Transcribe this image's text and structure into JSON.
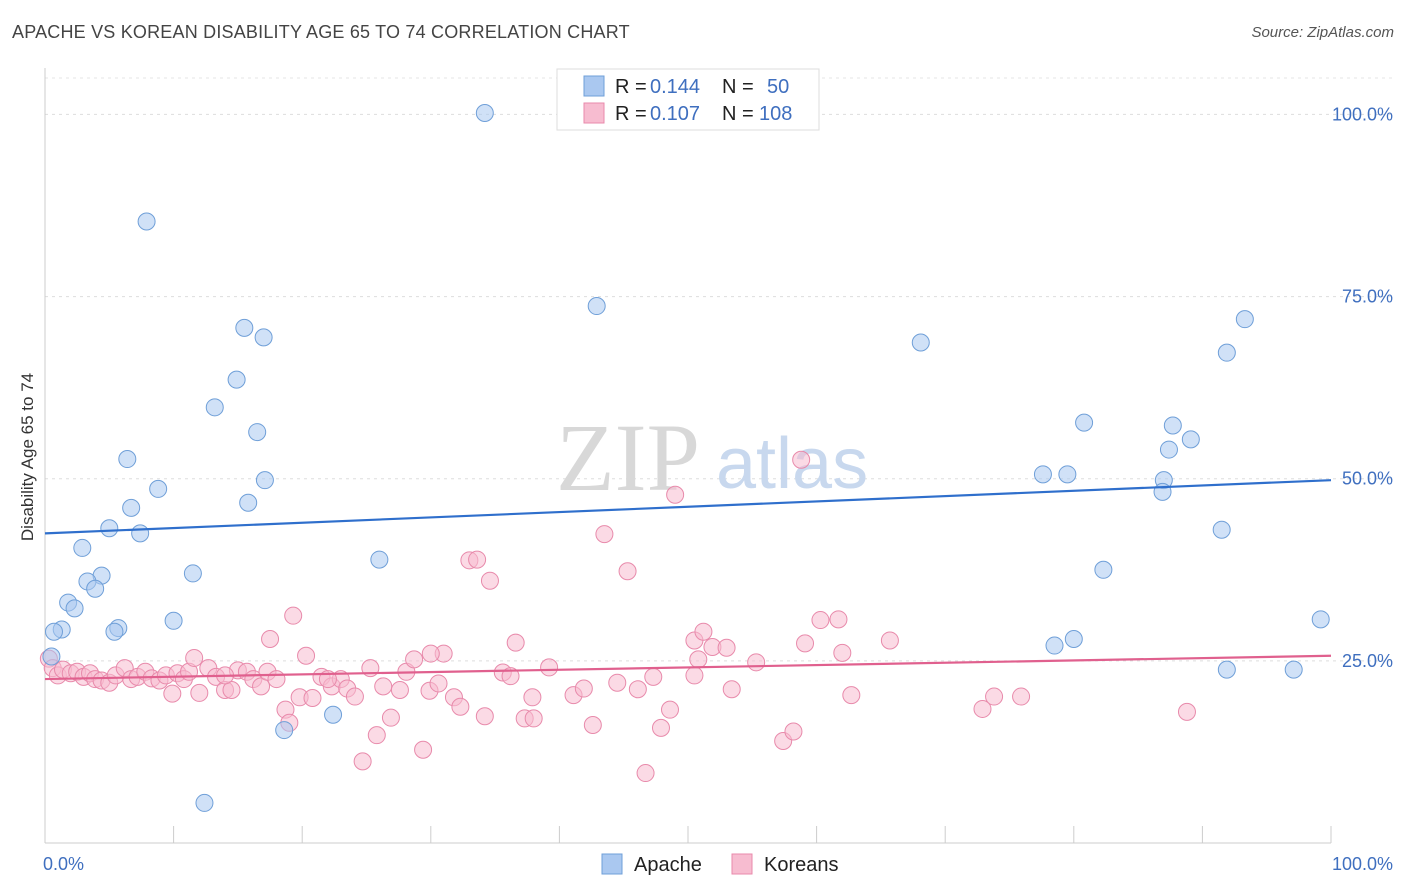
{
  "title": "APACHE VS KOREAN DISABILITY AGE 65 TO 74 CORRELATION CHART",
  "source": "Source: ZipAtlas.com",
  "watermark": {
    "zip": "ZIP",
    "atlas": "atlas"
  },
  "colors": {
    "apache_fill": "#aac8f0",
    "apache_stroke": "#6f9fd8",
    "apache_line": "#2f6fcc",
    "korean_fill": "#f7bcd0",
    "korean_stroke": "#e88aab",
    "korean_line": "#e0608e",
    "accent_text": "#3f6fbf"
  },
  "legend_top": {
    "rows": [
      {
        "r_label": "R = ",
        "r_value": "0.144",
        "n_label": "N = ",
        "n_value": "50"
      },
      {
        "r_label": "R = ",
        "r_value": "0.107",
        "n_label": "N = ",
        "n_value": "108"
      }
    ]
  },
  "legend_bottom": {
    "items": [
      "Apache",
      "Koreans"
    ]
  },
  "chart_data": {
    "type": "scatter",
    "title": "APACHE VS KOREAN DISABILITY AGE 65 TO 74 CORRELATION CHART",
    "xlabel": "",
    "ylabel": "Disability Age 65 to 74",
    "xlim": [
      0,
      100
    ],
    "ylim": [
      0,
      105
    ],
    "x_tick_labels": [
      "0.0%",
      "100.0%"
    ],
    "y_ticks": [
      25,
      50,
      75,
      100
    ],
    "y_tick_labels": [
      "25.0%",
      "50.0%",
      "75.0%",
      "100.0%"
    ],
    "grid": true,
    "legend_position": "top-center",
    "series": [
      {
        "name": "Apache",
        "r": 0.144,
        "n": 50,
        "trend": {
          "x": [
            0,
            100
          ],
          "y": [
            42.5,
            49.8
          ]
        },
        "points": [
          [
            34.2,
            100.2
          ],
          [
            7.9,
            85.3
          ],
          [
            42.9,
            73.7
          ],
          [
            15.5,
            70.7
          ],
          [
            17.0,
            69.4
          ],
          [
            14.9,
            63.6
          ],
          [
            13.2,
            59.8
          ],
          [
            16.5,
            56.4
          ],
          [
            6.4,
            52.7
          ],
          [
            17.1,
            49.8
          ],
          [
            8.8,
            48.6
          ],
          [
            6.7,
            46.0
          ],
          [
            15.8,
            46.7
          ],
          [
            5.0,
            43.2
          ],
          [
            7.4,
            42.5
          ],
          [
            2.9,
            40.5
          ],
          [
            26.0,
            38.9
          ],
          [
            11.5,
            37.0
          ],
          [
            4.4,
            36.7
          ],
          [
            3.3,
            35.9
          ],
          [
            3.9,
            34.9
          ],
          [
            1.8,
            33.0
          ],
          [
            2.3,
            32.2
          ],
          [
            10.0,
            30.5
          ],
          [
            5.7,
            29.5
          ],
          [
            1.3,
            29.3
          ],
          [
            0.7,
            29.0
          ],
          [
            5.4,
            29.0
          ],
          [
            18.6,
            15.5
          ],
          [
            22.4,
            17.6
          ],
          [
            12.4,
            5.5
          ],
          [
            68.1,
            68.7
          ],
          [
            80.8,
            57.7
          ],
          [
            77.6,
            50.6
          ],
          [
            79.5,
            50.6
          ],
          [
            87.7,
            57.3
          ],
          [
            87.4,
            54.0
          ],
          [
            89.1,
            55.4
          ],
          [
            91.9,
            67.3
          ],
          [
            93.3,
            71.9
          ],
          [
            87.0,
            49.8
          ],
          [
            86.9,
            48.2
          ],
          [
            91.5,
            43.0
          ],
          [
            82.3,
            37.5
          ],
          [
            80.0,
            28.0
          ],
          [
            78.5,
            27.1
          ],
          [
            91.9,
            23.8
          ],
          [
            97.1,
            23.8
          ],
          [
            99.2,
            30.7
          ],
          [
            0.5,
            25.6
          ]
        ]
      },
      {
        "name": "Koreans",
        "r": 0.107,
        "n": 108,
        "trend": {
          "x": [
            0,
            100
          ],
          "y": [
            22.5,
            25.7
          ]
        },
        "points": [
          [
            0.3,
            25.3
          ],
          [
            0.6,
            24.0
          ],
          [
            1.0,
            23.0
          ],
          [
            1.4,
            23.8
          ],
          [
            2.0,
            23.3
          ],
          [
            2.5,
            23.5
          ],
          [
            3.0,
            22.8
          ],
          [
            3.5,
            23.3
          ],
          [
            3.9,
            22.5
          ],
          [
            4.4,
            22.3
          ],
          [
            5.0,
            22.0
          ],
          [
            5.5,
            23.0
          ],
          [
            6.2,
            24.0
          ],
          [
            6.7,
            22.5
          ],
          [
            7.2,
            22.8
          ],
          [
            7.8,
            23.5
          ],
          [
            8.3,
            22.6
          ],
          [
            8.9,
            22.3
          ],
          [
            9.4,
            23.0
          ],
          [
            9.9,
            20.5
          ],
          [
            10.3,
            23.3
          ],
          [
            10.8,
            22.5
          ],
          [
            11.2,
            23.5
          ],
          [
            11.6,
            25.4
          ],
          [
            12.0,
            20.6
          ],
          [
            12.7,
            24.0
          ],
          [
            13.3,
            22.8
          ],
          [
            14.0,
            21.0
          ],
          [
            14.5,
            21.0
          ],
          [
            15.0,
            23.7
          ],
          [
            15.7,
            23.5
          ],
          [
            16.2,
            22.5
          ],
          [
            16.8,
            21.5
          ],
          [
            17.3,
            23.5
          ],
          [
            18.0,
            22.5
          ],
          [
            18.7,
            18.3
          ],
          [
            19.3,
            31.2
          ],
          [
            19.8,
            20.0
          ],
          [
            20.3,
            25.7
          ],
          [
            20.8,
            19.9
          ],
          [
            21.5,
            22.8
          ],
          [
            22.3,
            21.5
          ],
          [
            23.0,
            22.5
          ],
          [
            23.5,
            21.2
          ],
          [
            24.1,
            20.1
          ],
          [
            24.7,
            11.2
          ],
          [
            25.3,
            24.0
          ],
          [
            25.8,
            14.8
          ],
          [
            26.3,
            21.5
          ],
          [
            26.9,
            17.2
          ],
          [
            27.6,
            21.0
          ],
          [
            28.1,
            23.5
          ],
          [
            28.7,
            25.2
          ],
          [
            29.4,
            12.8
          ],
          [
            29.9,
            20.9
          ],
          [
            30.6,
            21.9
          ],
          [
            31.0,
            26.0
          ],
          [
            31.8,
            20.0
          ],
          [
            32.3,
            18.7
          ],
          [
            33.0,
            38.8
          ],
          [
            33.6,
            38.9
          ],
          [
            34.2,
            17.4
          ],
          [
            34.6,
            36.0
          ],
          [
            35.6,
            23.4
          ],
          [
            36.2,
            22.9
          ],
          [
            36.6,
            27.5
          ],
          [
            37.3,
            17.1
          ],
          [
            37.9,
            20.0
          ],
          [
            38.0,
            17.1
          ],
          [
            39.2,
            24.1
          ],
          [
            41.1,
            20.3
          ],
          [
            41.9,
            21.2
          ],
          [
            42.6,
            16.2
          ],
          [
            43.5,
            42.4
          ],
          [
            45.3,
            37.3
          ],
          [
            46.1,
            21.1
          ],
          [
            46.7,
            9.6
          ],
          [
            47.3,
            22.8
          ],
          [
            47.9,
            15.8
          ],
          [
            48.6,
            18.3
          ],
          [
            49.0,
            47.8
          ],
          [
            50.5,
            27.8
          ],
          [
            51.2,
            29.0
          ],
          [
            51.9,
            26.9
          ],
          [
            50.5,
            23.0
          ],
          [
            50.8,
            25.2
          ],
          [
            53.0,
            26.8
          ],
          [
            53.4,
            21.1
          ],
          [
            55.3,
            24.8
          ],
          [
            57.4,
            14.0
          ],
          [
            58.2,
            15.3
          ],
          [
            58.8,
            52.6
          ],
          [
            59.1,
            27.4
          ],
          [
            60.3,
            30.6
          ],
          [
            61.7,
            30.7
          ],
          [
            62.0,
            26.1
          ],
          [
            62.7,
            20.3
          ],
          [
            65.7,
            27.8
          ],
          [
            72.9,
            18.4
          ],
          [
            73.8,
            20.1
          ],
          [
            75.9,
            20.1
          ],
          [
            88.8,
            18.0
          ],
          [
            30.0,
            26.0
          ],
          [
            14.0,
            23.0
          ],
          [
            17.5,
            28.0
          ],
          [
            22.0,
            22.5
          ],
          [
            19.0,
            16.5
          ],
          [
            44.5,
            22.0
          ]
        ]
      }
    ]
  }
}
